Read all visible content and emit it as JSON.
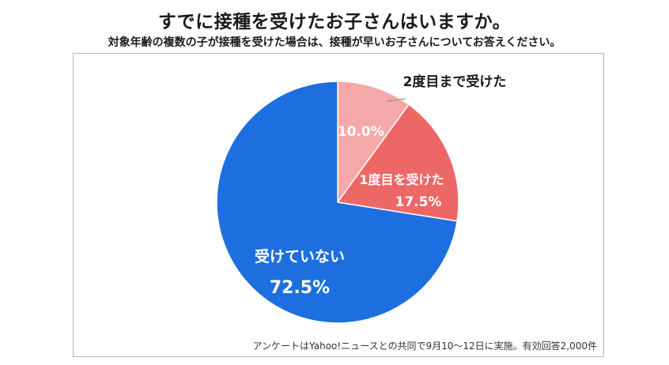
{
  "header": {
    "title": "すでに接種を受けたお子さんはいますか。",
    "subtitle": "対象年齢の複数の子が接種を受けた場合は、接種が早いお子さんについてお答えください。"
  },
  "footer": {
    "note": "アンケートはYahoo!ニュースとの共同で9月10〜12日に実施。有効回答2,000件"
  },
  "colors": {
    "two_doses": "#f4a9a8",
    "one_dose": "#ee6767",
    "none": "#1d6fe0"
  },
  "chart_data": {
    "type": "pie",
    "title": "すでに接種を受けたお子さんはいますか。",
    "slices": [
      {
        "label": "2度目まで受けた",
        "value": 10.0,
        "display": "10.0%",
        "color": "#f4a9a8"
      },
      {
        "label": "1度目を受けた",
        "value": 17.5,
        "display": "17.5%",
        "color": "#ee6767"
      },
      {
        "label": "受けていない",
        "value": 72.5,
        "display": "72.5%",
        "color": "#1d6fe0"
      }
    ],
    "start": "12 o'clock",
    "direction": "clockwise"
  }
}
